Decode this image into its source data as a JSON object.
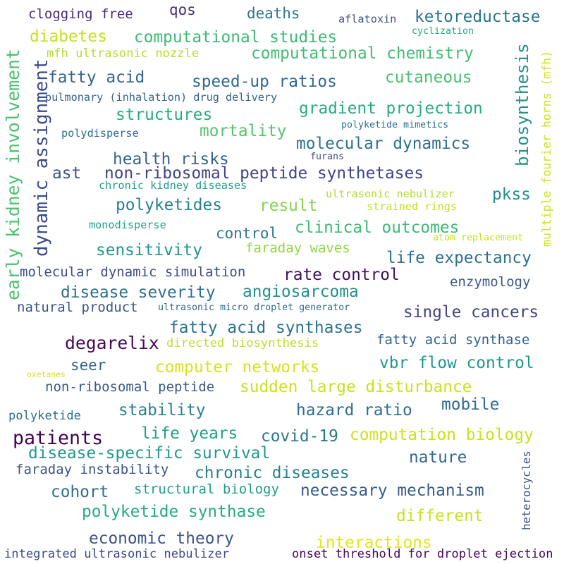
{
  "words": [
    {
      "text": "clogging free",
      "color": "#472c7a"
    },
    {
      "text": "qos",
      "color": "#472d7b"
    },
    {
      "text": "deaths",
      "color": "#2a788e"
    },
    {
      "text": "aflatoxin",
      "color": "#3b528b"
    },
    {
      "text": "ketoreductase",
      "color": "#2b758e"
    },
    {
      "text": "cyclization",
      "color": "#22a884"
    },
    {
      "text": "diabetes",
      "color": "#c8e020"
    },
    {
      "text": "computational studies",
      "color": "#3cbb75"
    },
    {
      "text": "computational chemistry",
      "color": "#42be71"
    },
    {
      "text": "mfh ultrasonic nozzle",
      "color": "#b5de2b"
    },
    {
      "text": "fatty acid",
      "color": "#33638d"
    },
    {
      "text": "speed-up ratios",
      "color": "#31688e"
    },
    {
      "text": "cutaneous",
      "color": "#4ac16d"
    },
    {
      "text": "biosynthesis",
      "color": "#21918c"
    },
    {
      "text": "multiple fourier horns (mfh)",
      "color": "#d0e11c"
    },
    {
      "text": "pulmonary (inhalation) drug delivery",
      "color": "#33638d"
    },
    {
      "text": "gradient projection",
      "color": "#25ab82"
    },
    {
      "text": "structures",
      "color": "#25ab82"
    },
    {
      "text": "mortality",
      "color": "#52c569"
    },
    {
      "text": "polyketide mimetics",
      "color": "#2d708e"
    },
    {
      "text": "polydisperse",
      "color": "#2e6e8e"
    },
    {
      "text": "molecular dynamics",
      "color": "#2c728e"
    },
    {
      "text": "dynamic assignment",
      "color": "#3e4a89"
    },
    {
      "text": "early kidney involvement",
      "color": "#4ac16d"
    },
    {
      "text": "health risks",
      "color": "#33638d"
    },
    {
      "text": "furans",
      "color": "#3e4a89"
    },
    {
      "text": "ast",
      "color": "#3b528b"
    },
    {
      "text": "non-ribosomal peptide synthetases",
      "color": "#404387"
    },
    {
      "text": "chronic kidney diseases",
      "color": "#1f9e89"
    },
    {
      "text": "ultrasonic nebulizer",
      "color": "#b2dd2d"
    },
    {
      "text": "pkss",
      "color": "#238a8d"
    },
    {
      "text": "polyketides",
      "color": "#26828e"
    },
    {
      "text": "result",
      "color": "#84d44b"
    },
    {
      "text": "strained rings",
      "color": "#c2df23"
    },
    {
      "text": "monodisperse",
      "color": "#20a486"
    },
    {
      "text": "clinical outcomes",
      "color": "#3cbb75"
    },
    {
      "text": "control",
      "color": "#2a768e"
    },
    {
      "text": "atom replacement",
      "color": "#c5e021"
    },
    {
      "text": "sensitivity",
      "color": "#1f988b"
    },
    {
      "text": "faraday waves",
      "color": "#90d743"
    },
    {
      "text": "life expectancy",
      "color": "#2d708e"
    },
    {
      "text": "molecular dynamic simulation",
      "color": "#3e4a89"
    },
    {
      "text": "rate control",
      "color": "#3f0f5f"
    },
    {
      "text": "enzymology",
      "color": "#39568c"
    },
    {
      "text": "disease severity",
      "color": "#2d708e"
    },
    {
      "text": "angiosarcoma",
      "color": "#21918c"
    },
    {
      "text": "natural product",
      "color": "#3b528b"
    },
    {
      "text": "ultrasonic micro droplet generator",
      "color": "#31688e"
    },
    {
      "text": "single cancers",
      "color": "#414487"
    },
    {
      "text": "fatty acid synthases",
      "color": "#2c728e"
    },
    {
      "text": "degarelix",
      "color": "#46075a"
    },
    {
      "text": "directed biosynthesis",
      "color": "#bddf26"
    },
    {
      "text": "fatty acid synthase",
      "color": "#33638d"
    },
    {
      "text": "seer",
      "color": "#31688e"
    },
    {
      "text": "computer networks",
      "color": "#d8e219"
    },
    {
      "text": "vbr flow control",
      "color": "#1f988b"
    },
    {
      "text": "oxetanes",
      "color": "#d5e21a"
    },
    {
      "text": "non-ribosomal peptide",
      "color": "#375a8c"
    },
    {
      "text": "sudden large disturbance",
      "color": "#cae11f"
    },
    {
      "text": "polyketide",
      "color": "#2d708e"
    },
    {
      "text": "stability",
      "color": "#26828e"
    },
    {
      "text": "hazard ratio",
      "color": "#2e6e8e"
    },
    {
      "text": "mobile",
      "color": "#2f6c8e"
    },
    {
      "text": "patients",
      "color": "#440154"
    },
    {
      "text": "life years",
      "color": "#1fa088"
    },
    {
      "text": "covid-19",
      "color": "#29798e"
    },
    {
      "text": "computation biology",
      "color": "#cae11f"
    },
    {
      "text": "disease-specific survival",
      "color": "#1f988b"
    },
    {
      "text": "nature",
      "color": "#31688e"
    },
    {
      "text": "faraday instability",
      "color": "#3b528b"
    },
    {
      "text": "chronic diseases",
      "color": "#27808e"
    },
    {
      "text": "heterocycles",
      "color": "#3b528b"
    },
    {
      "text": "cohort",
      "color": "#2d708e"
    },
    {
      "text": "structural biology",
      "color": "#1f9e89"
    },
    {
      "text": "necessary mechanism",
      "color": "#365c8d"
    },
    {
      "text": "polyketide synthase",
      "color": "#25ab82"
    },
    {
      "text": "different",
      "color": "#cae11f"
    },
    {
      "text": "economic theory",
      "color": "#3b528b"
    },
    {
      "text": "interactions",
      "color": "#e5e419"
    },
    {
      "text": "integrated ultrasonic nebulizer",
      "color": "#3e4a89"
    },
    {
      "text": "onset threshold for droplet ejection",
      "color": "#46085c"
    }
  ]
}
